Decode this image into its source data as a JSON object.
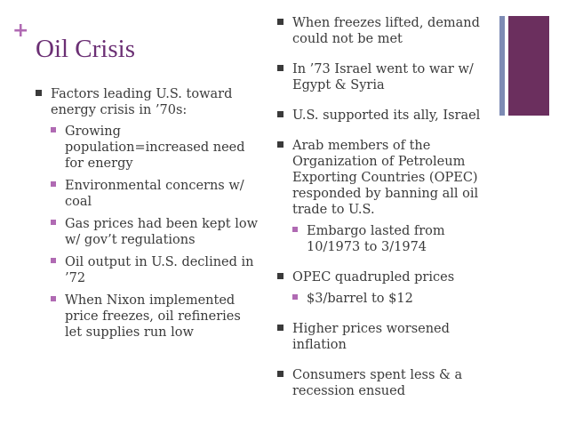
{
  "slide": {
    "plus_symbol": "+",
    "title": "Oil Crisis",
    "accent_colors": {
      "title": "#6b2f74",
      "plus": "#b06ab3",
      "bar_light": "#7d8bb4",
      "bar_dark": "#6b2f5e"
    },
    "left_column": {
      "main": "Factors leading U.S. toward energy crisis in ’70s:",
      "sub": [
        "Growing population=increased need for energy",
        "Environmental concerns w/ coal",
        "Gas prices had been kept low w/ gov’t regulations",
        "Oil output in U.S. declined in ’72",
        "When Nixon implemented price freezes, oil refineries let supplies run low"
      ]
    },
    "right_column": [
      {
        "text": "When freezes lifted, demand could not be met",
        "sub": []
      },
      {
        "text": "In ’73 Israel went to war w/ Egypt & Syria",
        "sub": []
      },
      {
        "text": "U.S. supported its ally, Israel",
        "sub": []
      },
      {
        "text": "Arab members of the Organization of Petroleum Exporting Countries (OPEC) responded by banning all oil trade to U.S.",
        "sub": [
          "Embargo lasted from 10/1973 to 3/1974"
        ]
      },
      {
        "text": "OPEC quadrupled prices",
        "sub": [
          "$3/barrel to $12"
        ]
      },
      {
        "text": "Higher prices worsened inflation",
        "sub": []
      },
      {
        "text": "Consumers spent less & a recession ensued",
        "sub": []
      }
    ]
  }
}
